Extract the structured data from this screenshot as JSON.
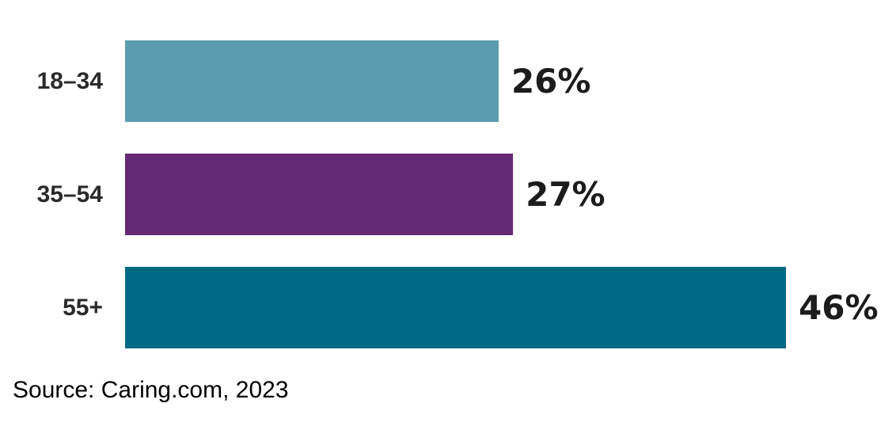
{
  "chart_data": {
    "type": "bar",
    "orientation": "horizontal",
    "title": "",
    "xlabel": "",
    "ylabel": "",
    "categories": [
      "18–34",
      "35–54",
      "55+"
    ],
    "values": [
      26,
      27,
      46
    ],
    "value_labels": [
      "26%",
      "27%",
      "46%"
    ],
    "unit": "%",
    "colors": [
      "#5b9caf",
      "#652a73",
      "#006a84"
    ],
    "xlim": [
      0,
      46
    ],
    "grid": false,
    "legend": "none"
  },
  "source": "Source: Caring.com, 2023"
}
